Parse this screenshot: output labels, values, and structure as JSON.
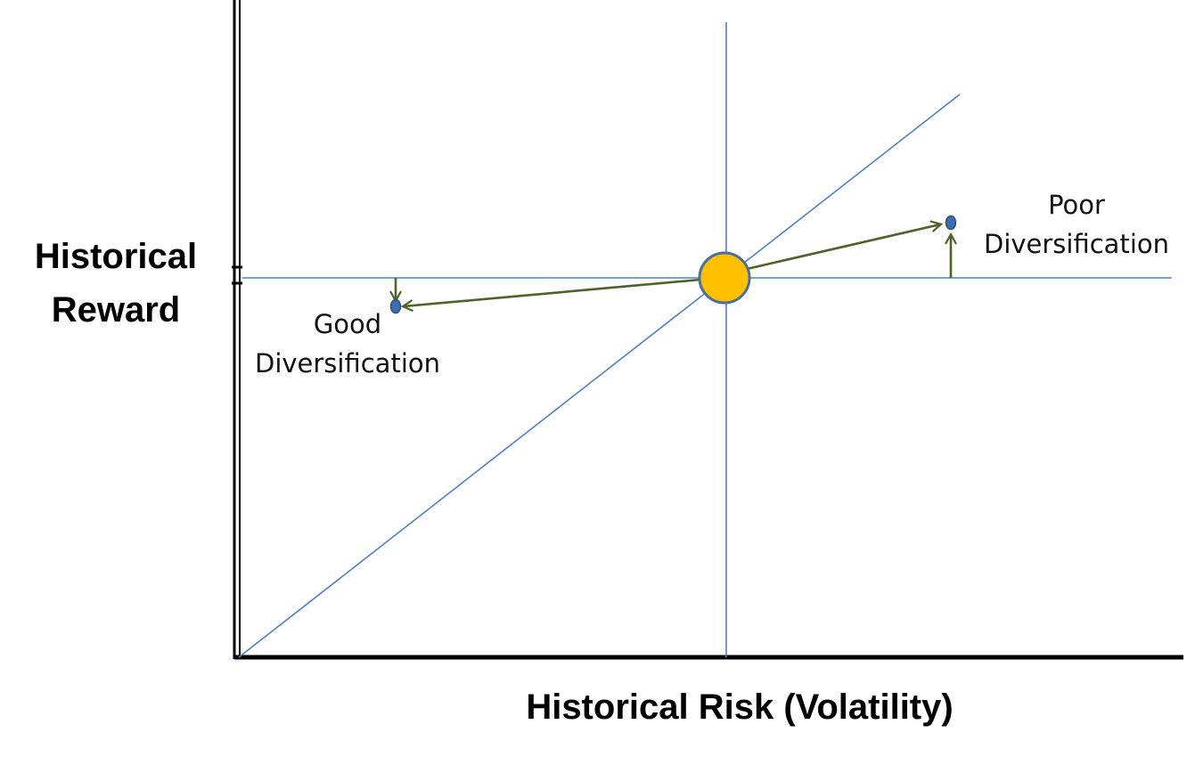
{
  "diagram": {
    "y_axis_title_line1": "Historical",
    "y_axis_title_line2": "Reward",
    "x_axis_title": "Historical Risk (Volatility)",
    "annotations": {
      "poor": {
        "line1": "Poor",
        "line2": "Diversification"
      },
      "good": {
        "line1": "Good",
        "line2": "Diversification"
      }
    },
    "colors": {
      "axis": "#000000",
      "guide_line": "#4f81bd",
      "arrow": "#4f6228",
      "center_fill": "#ffc000",
      "center_stroke": "#4a6f9e",
      "point_fill": "#3f6cab",
      "point_stroke": "#2b4f80"
    }
  }
}
